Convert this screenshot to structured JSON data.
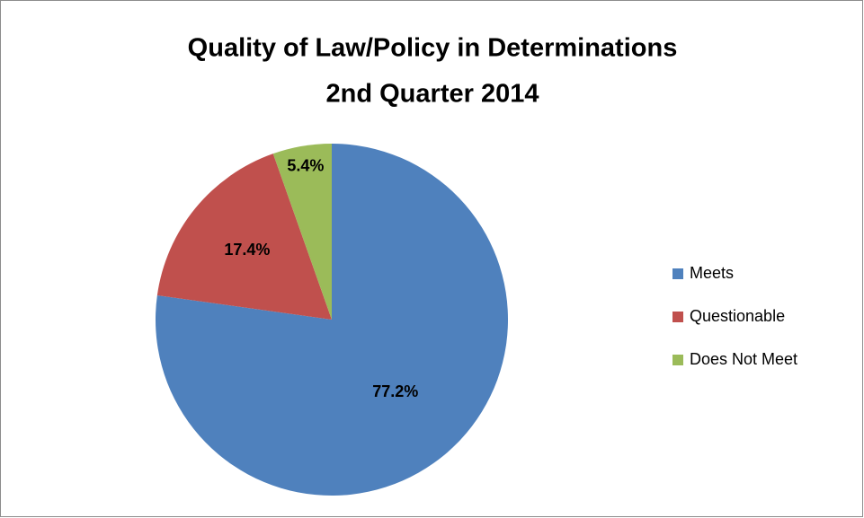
{
  "chart_data": {
    "type": "pie",
    "title": "Quality of Law/Policy in Determinations",
    "subtitle": "2nd Quarter 2014",
    "categories": [
      "Meets",
      "Questionable",
      "Does Not Meet"
    ],
    "values": [
      77.2,
      17.4,
      5.4
    ],
    "value_labels": [
      "77.2%",
      "17.4%",
      "5.4%"
    ],
    "colors": [
      "#4f81bd",
      "#c0504d",
      "#9bbb59"
    ],
    "legend": "right"
  }
}
